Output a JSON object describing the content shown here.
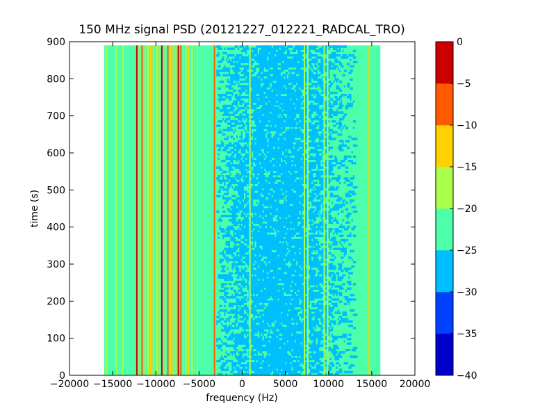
{
  "chart_data": {
    "type": "heatmap",
    "title": "150 MHz signal PSD (20121227_012221_RADCAL_TRO)",
    "xlabel": "frequency (Hz)",
    "ylabel": "time (s)",
    "xlim": [
      -20000,
      20000
    ],
    "ylim": [
      0,
      900
    ],
    "xticks": [
      -20000,
      -15000,
      -10000,
      -5000,
      0,
      5000,
      10000,
      15000,
      20000
    ],
    "xtick_labels": [
      "−20000",
      "−15000",
      "−10000",
      "−5000",
      "0",
      "5000",
      "10000",
      "15000",
      "20000"
    ],
    "yticks": [
      0,
      100,
      200,
      300,
      400,
      500,
      600,
      700,
      800,
      900
    ],
    "ytick_labels": [
      "0",
      "100",
      "200",
      "300",
      "400",
      "500",
      "600",
      "700",
      "800",
      "900"
    ],
    "data_extent": {
      "x": [
        -16000,
        16000
      ],
      "y": [
        0,
        890
      ]
    },
    "background_level": -22.5,
    "colorbar": {
      "levels": [
        -40,
        -35,
        -30,
        -25,
        -20,
        -15,
        -10,
        -5,
        0
      ],
      "tick_labels": [
        "−40",
        "−35",
        "−30",
        "−25",
        "−20",
        "−15",
        "−10",
        "−5",
        "0"
      ],
      "colors": [
        "#0000cd",
        "#0040ff",
        "#00bfff",
        "#4dffaa",
        "#aaff4d",
        "#ffd100",
        "#ff5a00",
        "#cd0000"
      ]
    },
    "lines": [
      {
        "x": -15700,
        "level": -17.5
      },
      {
        "x": -14600,
        "level": -17.5
      },
      {
        "x": -13800,
        "level": -17.5
      },
      {
        "x": -12200,
        "level": -2.5
      },
      {
        "x": -11900,
        "level": -12.5
      },
      {
        "x": -11600,
        "level": -7.5
      },
      {
        "x": -11200,
        "level": -12.5
      },
      {
        "x": -10900,
        "level": -17.5
      },
      {
        "x": -10600,
        "level": -12.5
      },
      {
        "x": -10300,
        "level": -12.5
      },
      {
        "x": -9900,
        "level": -17.5
      },
      {
        "x": -9600,
        "level": -12.5
      },
      {
        "x": -9300,
        "level": -2.5
      },
      {
        "x": -8900,
        "level": -12.5
      },
      {
        "x": -8600,
        "level": -7.5
      },
      {
        "x": -8300,
        "level": -12.5
      },
      {
        "x": -8000,
        "level": -12.5
      },
      {
        "x": -7700,
        "level": -12.5
      },
      {
        "x": -7400,
        "level": -2.5
      },
      {
        "x": -7100,
        "level": -7.5
      },
      {
        "x": -6800,
        "level": -12.5
      },
      {
        "x": -6500,
        "level": -17.5
      },
      {
        "x": -6200,
        "level": -12.5
      },
      {
        "x": -5800,
        "level": -17.5
      },
      {
        "x": -5200,
        "level": -17.5
      },
      {
        "x": -3200,
        "level": -7.5
      },
      {
        "x": 900,
        "level": -17.5
      },
      {
        "x": 7200,
        "level": -17.5
      },
      {
        "x": 7600,
        "level": -17.5
      },
      {
        "x": 9500,
        "level": -17.5
      },
      {
        "x": 9900,
        "level": -17.5
      },
      {
        "x": 14700,
        "level": -12.5
      }
    ],
    "noise_band": {
      "x": [
        -3000,
        13000
      ],
      "levels": [
        -27.5,
        -22.5
      ]
    }
  }
}
